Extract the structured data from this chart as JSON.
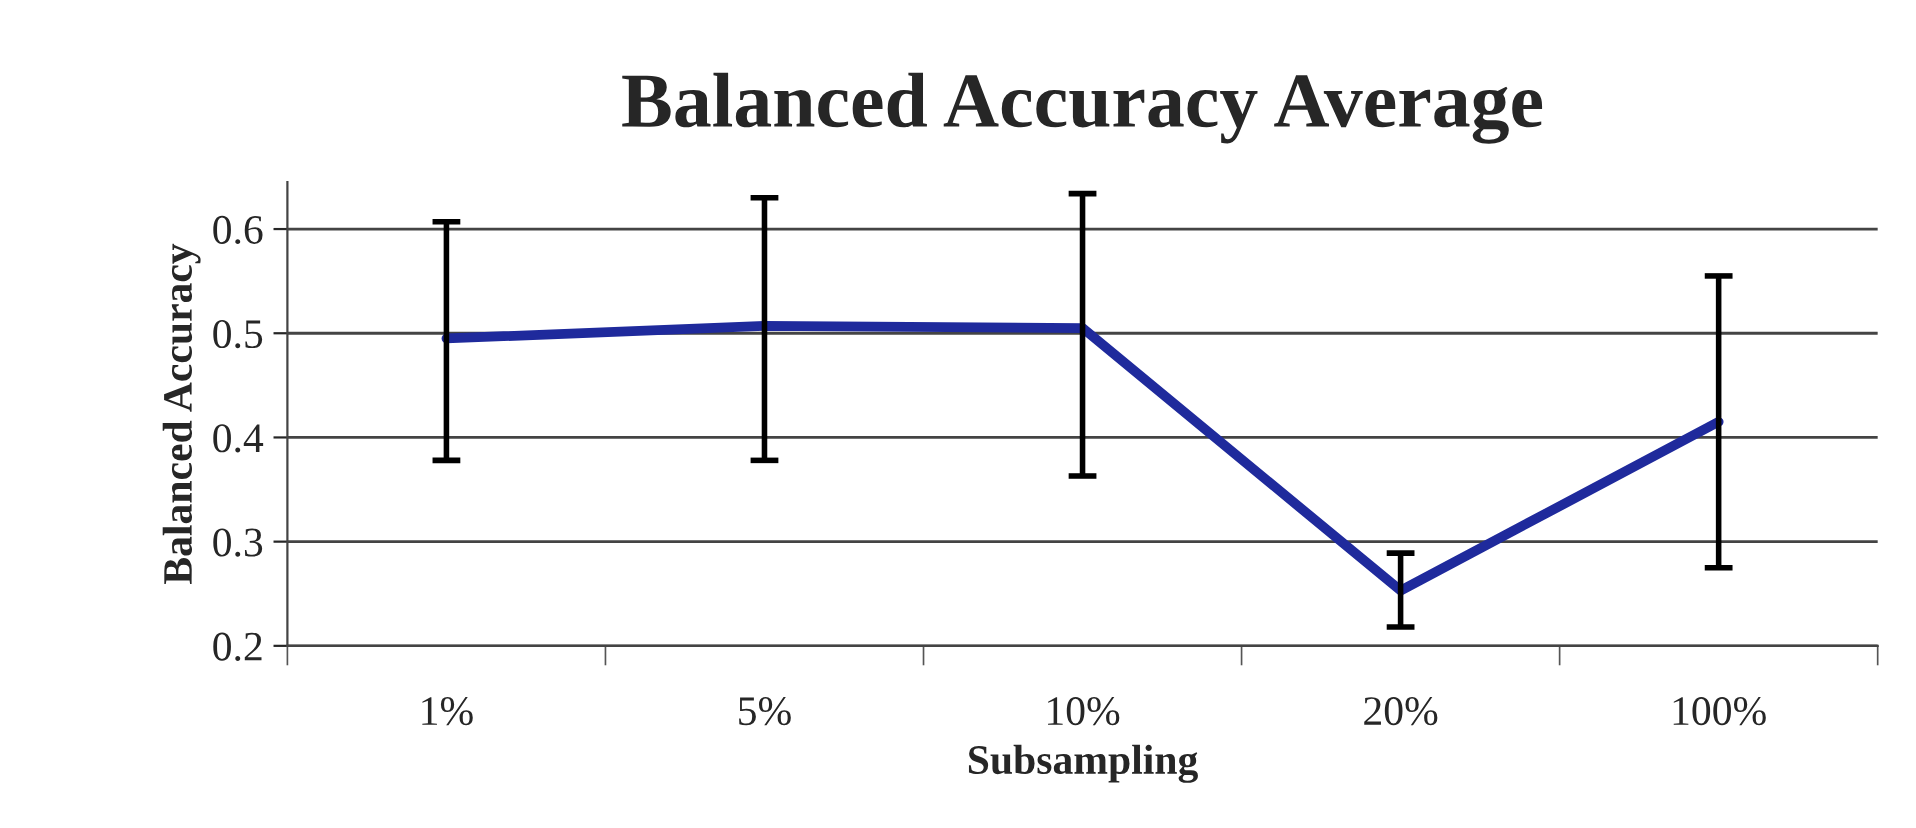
{
  "chart_data": {
    "type": "line",
    "title": "Balanced Accuracy Average",
    "xlabel": "Subsampling",
    "ylabel": "Balanced Accuracy",
    "categories": [
      "1%",
      "5%",
      "10%",
      "20%",
      "100%"
    ],
    "series": [
      {
        "color": "#1f2a9c",
        "values": [
          0.495,
          0.507,
          0.505,
          0.253,
          0.415
        ],
        "errors": [
          [
            0.378,
            0.607
          ],
          [
            0.378,
            0.63
          ],
          [
            0.363,
            0.634
          ],
          [
            0.218,
            0.289
          ],
          [
            0.275,
            0.555
          ]
        ]
      }
    ],
    "ylim": [
      0.2,
      0.645
    ],
    "yticks": [
      0.2,
      0.3,
      0.4,
      0.5,
      0.6
    ],
    "grid": "y",
    "marker": "none",
    "line_style": "solid",
    "legend": false
  }
}
